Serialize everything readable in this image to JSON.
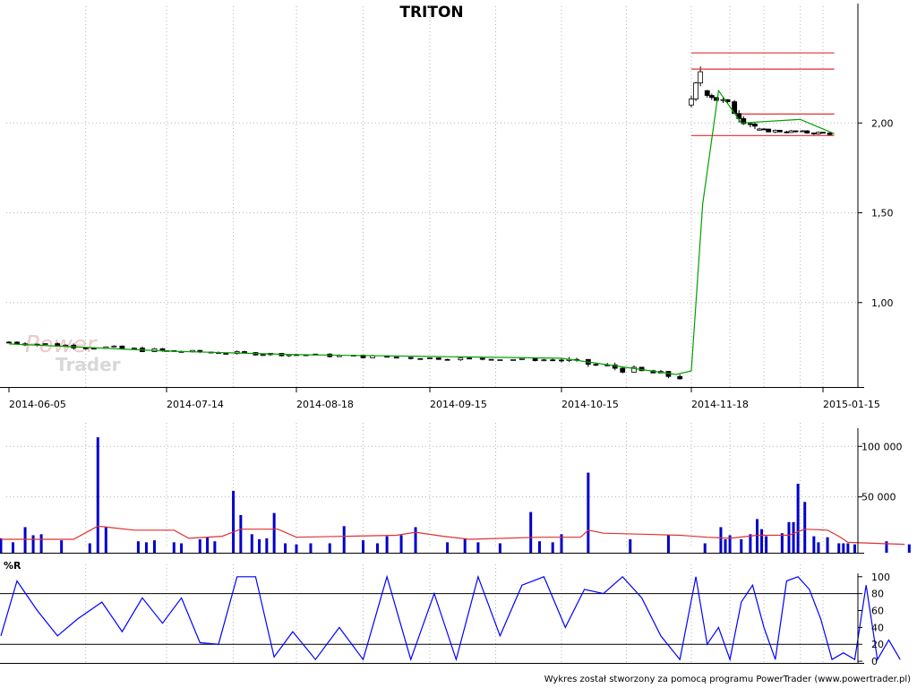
{
  "title": "TRITON",
  "footer": "Wykres został stworzony za pomocą programu PowerTrader (www.powertrader.pl)",
  "watermark": {
    "line1": "Power",
    "line2": "Trader"
  },
  "colors": {
    "price_up": "#ffffff",
    "price_down": "#000000",
    "ma_line": "#00a000",
    "resistance": "#e03030",
    "volume_bar": "#0000cc",
    "volume_avg": "#e03030",
    "oscillator": "#0000ff",
    "grid": "#b4b4b4"
  },
  "chart_data": [
    {
      "type": "candlestick",
      "title": "TRITON",
      "x_tick_labels": [
        "2014-06-05",
        "2014-07-14",
        "2014-08-18",
        "2014-09-15",
        "2014-10-15",
        "2014-11-18",
        "2015-01-15"
      ],
      "y_tick_labels": [
        "1,00",
        "1,50",
        "2,00"
      ],
      "y_ticks": [
        1.0,
        1.5,
        2.0
      ],
      "ylim": [
        0.53,
        2.55
      ],
      "grid": true,
      "price_segments": [
        {
          "from": "2014-06-05",
          "to": "2014-07-14",
          "start": 0.78,
          "end": 0.73
        },
        {
          "from": "2014-07-14",
          "to": "2014-08-18",
          "start": 0.73,
          "end": 0.71
        },
        {
          "from": "2014-08-18",
          "to": "2014-09-15",
          "start": 0.71,
          "end": 0.69
        },
        {
          "from": "2014-09-15",
          "to": "2014-10-15",
          "start": 0.69,
          "end": 0.68
        },
        {
          "from": "2014-10-15",
          "to": "2014-11-17",
          "start": 0.68,
          "end": 0.58
        },
        {
          "from": "2014-11-18",
          "to": "2014-11-25",
          "start": 2.1,
          "end": 2.38
        },
        {
          "from": "2014-11-25",
          "to": "2014-12-18",
          "start": 2.18,
          "end": 1.97
        },
        {
          "from": "2014-12-18",
          "to": "2015-01-20",
          "start": 1.96,
          "end": 1.94
        }
      ],
      "moving_average": [
        {
          "at": "2014-06-05",
          "value": 0.77
        },
        {
          "at": "2014-07-14",
          "value": 0.73
        },
        {
          "at": "2014-08-18",
          "value": 0.71
        },
        {
          "at": "2014-09-15",
          "value": 0.7
        },
        {
          "at": "2014-10-15",
          "value": 0.69
        },
        {
          "at": "2014-11-14",
          "value": 0.6
        },
        {
          "at": "2014-11-18",
          "value": 0.62
        },
        {
          "at": "2014-11-23",
          "value": 1.55
        },
        {
          "at": "2014-11-30",
          "value": 2.18
        },
        {
          "at": "2014-12-10",
          "value": 2.0
        },
        {
          "at": "2015-01-05",
          "value": 2.02
        },
        {
          "at": "2015-01-20",
          "value": 1.94
        }
      ],
      "resistance_levels": [
        {
          "value": 2.39,
          "from": "2014-11-18",
          "to": "2015-01-20"
        },
        {
          "value": 2.3,
          "from": "2014-11-18",
          "to": "2015-01-20"
        },
        {
          "value": 2.05,
          "from": "2014-12-10",
          "to": "2015-01-20"
        },
        {
          "value": 1.93,
          "from": "2014-11-18",
          "to": "2015-01-20"
        }
      ]
    },
    {
      "type": "bar",
      "y_tick_labels": [
        "50 000",
        "100 000"
      ],
      "y_ticks": [
        50000,
        100000
      ],
      "ylim": [
        0,
        118000
      ],
      "grid": true,
      "bars": [
        {
          "at": "2014-06-03",
          "value": 9000
        },
        {
          "at": "2014-06-06",
          "value": 5000
        },
        {
          "at": "2014-06-09",
          "value": 20000
        },
        {
          "at": "2014-06-11",
          "value": 12000
        },
        {
          "at": "2014-06-13",
          "value": 13000
        },
        {
          "at": "2014-06-18",
          "value": 7000
        },
        {
          "at": "2014-06-25",
          "value": 4000
        },
        {
          "at": "2014-06-27",
          "value": 109000
        },
        {
          "at": "2014-06-29",
          "value": 20000
        },
        {
          "at": "2014-07-07",
          "value": 6000
        },
        {
          "at": "2014-07-09",
          "value": 5000
        },
        {
          "at": "2014-07-11",
          "value": 7000
        },
        {
          "at": "2014-07-16",
          "value": 5000
        },
        {
          "at": "2014-07-18",
          "value": 4000
        },
        {
          "at": "2014-07-23",
          "value": 8000
        },
        {
          "at": "2014-07-25",
          "value": 10000
        },
        {
          "at": "2014-07-27",
          "value": 6000
        },
        {
          "at": "2014-08-01",
          "value": 56000
        },
        {
          "at": "2014-08-03",
          "value": 32000
        },
        {
          "at": "2014-08-06",
          "value": 13000
        },
        {
          "at": "2014-08-08",
          "value": 8000
        },
        {
          "at": "2014-08-10",
          "value": 9000
        },
        {
          "at": "2014-08-12",
          "value": 34000
        },
        {
          "at": "2014-08-15",
          "value": 4000
        },
        {
          "at": "2014-08-18",
          "value": 3000
        },
        {
          "at": "2014-08-21",
          "value": 4000
        },
        {
          "at": "2014-08-25",
          "value": 4000
        },
        {
          "at": "2014-08-28",
          "value": 21000
        },
        {
          "at": "2014-09-01",
          "value": 7000
        },
        {
          "at": "2014-09-04",
          "value": 4000
        },
        {
          "at": "2014-09-06",
          "value": 11000
        },
        {
          "at": "2014-09-09",
          "value": 12000
        },
        {
          "at": "2014-09-12",
          "value": 20000
        },
        {
          "at": "2014-09-19",
          "value": 5000
        },
        {
          "at": "2014-09-23",
          "value": 9000
        },
        {
          "at": "2014-09-26",
          "value": 5000
        },
        {
          "at": "2014-10-01",
          "value": 4000
        },
        {
          "at": "2014-10-08",
          "value": 35000
        },
        {
          "at": "2014-10-10",
          "value": 6000
        },
        {
          "at": "2014-10-13",
          "value": 5000
        },
        {
          "at": "2014-10-15",
          "value": 13000
        },
        {
          "at": "2014-10-22",
          "value": 74000
        },
        {
          "at": "2014-11-02",
          "value": 8000
        },
        {
          "at": "2014-11-12",
          "value": 12000
        },
        {
          "at": "2014-11-24",
          "value": 4000
        },
        {
          "at": "2014-12-01",
          "value": 20000
        },
        {
          "at": "2014-12-03",
          "value": 8000
        },
        {
          "at": "2014-12-05",
          "value": 12000
        },
        {
          "at": "2014-12-10",
          "value": 8000
        },
        {
          "at": "2014-12-14",
          "value": 13000
        },
        {
          "at": "2014-12-17",
          "value": 28000
        },
        {
          "at": "2014-12-19",
          "value": 18000
        },
        {
          "at": "2014-12-21",
          "value": 11000
        },
        {
          "at": "2014-12-28",
          "value": 14000
        },
        {
          "at": "2014-12-31",
          "value": 25000
        },
        {
          "at": "2015-01-02",
          "value": 25000
        },
        {
          "at": "2015-01-04",
          "value": 63000
        },
        {
          "at": "2015-01-07",
          "value": 45000
        },
        {
          "at": "2015-01-11",
          "value": 11000
        },
        {
          "at": "2015-01-13",
          "value": 5000
        },
        {
          "at": "2015-01-17",
          "value": 10000
        },
        {
          "at": "2015-01-22",
          "value": 4000
        },
        {
          "at": "2015-01-24",
          "value": 4000
        },
        {
          "at": "2015-01-26",
          "value": 4000
        },
        {
          "at": "2015-01-29",
          "value": 3000
        },
        {
          "at": "2015-02-12",
          "value": 6000
        },
        {
          "at": "2015-02-22",
          "value": 3000
        }
      ],
      "average_line": [
        {
          "at": "2014-06-03",
          "value": 8000
        },
        {
          "at": "2014-06-21",
          "value": 8000
        },
        {
          "at": "2014-06-27",
          "value": 21000
        },
        {
          "at": "2014-07-06",
          "value": 17000
        },
        {
          "at": "2014-07-16",
          "value": 17000
        },
        {
          "at": "2014-07-20",
          "value": 9000
        },
        {
          "at": "2014-07-29",
          "value": 11000
        },
        {
          "at": "2014-08-03",
          "value": 18000
        },
        {
          "at": "2014-08-13",
          "value": 18000
        },
        {
          "at": "2014-08-18",
          "value": 10000
        },
        {
          "at": "2014-09-08",
          "value": 12000
        },
        {
          "at": "2014-09-12",
          "value": 15000
        },
        {
          "at": "2014-09-18",
          "value": 11000
        },
        {
          "at": "2014-09-24",
          "value": 8000
        },
        {
          "at": "2014-10-10",
          "value": 10000
        },
        {
          "at": "2014-10-20",
          "value": 10000
        },
        {
          "at": "2014-10-22",
          "value": 17000
        },
        {
          "at": "2014-10-26",
          "value": 14000
        },
        {
          "at": "2014-11-05",
          "value": 13000
        },
        {
          "at": "2014-11-15",
          "value": 12000
        },
        {
          "at": "2014-11-25",
          "value": 10000
        },
        {
          "at": "2014-12-05",
          "value": 9000
        },
        {
          "at": "2014-12-17",
          "value": 12000
        },
        {
          "at": "2014-12-31",
          "value": 12000
        },
        {
          "at": "2015-01-07",
          "value": 18000
        },
        {
          "at": "2015-01-17",
          "value": 17000
        },
        {
          "at": "2015-01-22",
          "value": 11000
        },
        {
          "at": "2015-01-26",
          "value": 5000
        },
        {
          "at": "2015-02-07",
          "value": 4000
        },
        {
          "at": "2015-02-20",
          "value": 3000
        }
      ]
    },
    {
      "type": "line",
      "title": "%R",
      "y_tick_labels": [
        "0",
        "20",
        "40",
        "60",
        "80",
        "100"
      ],
      "y_ticks": [
        0,
        20,
        40,
        60,
        80,
        100
      ],
      "reference_levels": [
        20,
        80
      ],
      "ylim": [
        -2,
        104
      ],
      "series": [
        {
          "points": [
            {
              "at": "2014-06-03",
              "value": 30
            },
            {
              "at": "2014-06-07",
              "value": 95
            },
            {
              "at": "2014-06-12",
              "value": 60
            },
            {
              "at": "2014-06-17",
              "value": 30
            },
            {
              "at": "2014-06-22",
              "value": 50
            },
            {
              "at": "2014-06-28",
              "value": 70
            },
            {
              "at": "2014-07-03",
              "value": 35
            },
            {
              "at": "2014-07-08",
              "value": 75
            },
            {
              "at": "2014-07-13",
              "value": 45
            },
            {
              "at": "2014-07-18",
              "value": 75
            },
            {
              "at": "2014-07-23",
              "value": 22
            },
            {
              "at": "2014-07-28",
              "value": 20
            },
            {
              "at": "2014-08-02",
              "value": 100
            },
            {
              "at": "2014-08-07",
              "value": 100
            },
            {
              "at": "2014-08-12",
              "value": 5
            },
            {
              "at": "2014-08-17",
              "value": 35
            },
            {
              "at": "2014-08-22",
              "value": 2
            },
            {
              "at": "2014-08-27",
              "value": 40
            },
            {
              "at": "2014-09-01",
              "value": 2
            },
            {
              "at": "2014-09-06",
              "value": 100
            },
            {
              "at": "2014-09-11",
              "value": 2
            },
            {
              "at": "2014-09-16",
              "value": 80
            },
            {
              "at": "2014-09-21",
              "value": 2
            },
            {
              "at": "2014-09-26",
              "value": 100
            },
            {
              "at": "2014-10-01",
              "value": 30
            },
            {
              "at": "2014-10-06",
              "value": 90
            },
            {
              "at": "2014-10-11",
              "value": 100
            },
            {
              "at": "2014-10-16",
              "value": 40
            },
            {
              "at": "2014-10-21",
              "value": 85
            },
            {
              "at": "2014-10-26",
              "value": 80
            },
            {
              "at": "2014-10-31",
              "value": 100
            },
            {
              "at": "2014-11-05",
              "value": 75
            },
            {
              "at": "2014-11-10",
              "value": 30
            },
            {
              "at": "2014-11-15",
              "value": 2
            },
            {
              "at": "2014-11-20",
              "value": 100
            },
            {
              "at": "2014-11-25",
              "value": 20
            },
            {
              "at": "2014-11-30",
              "value": 40
            },
            {
              "at": "2014-12-05",
              "value": 2
            },
            {
              "at": "2014-12-10",
              "value": 70
            },
            {
              "at": "2014-12-15",
              "value": 90
            },
            {
              "at": "2014-12-20",
              "value": 40
            },
            {
              "at": "2014-12-25",
              "value": 2
            },
            {
              "at": "2014-12-30",
              "value": 95
            },
            {
              "at": "2015-01-04",
              "value": 100
            },
            {
              "at": "2015-01-09",
              "value": 85
            },
            {
              "at": "2015-01-14",
              "value": 50
            },
            {
              "at": "2015-01-19",
              "value": 2
            },
            {
              "at": "2015-01-24",
              "value": 10
            },
            {
              "at": "2015-01-29",
              "value": 2
            },
            {
              "at": "2015-02-03",
              "value": 90
            },
            {
              "at": "2015-02-08",
              "value": 2
            },
            {
              "at": "2015-02-13",
              "value": 25
            },
            {
              "at": "2015-02-18",
              "value": 2
            }
          ]
        }
      ]
    }
  ]
}
